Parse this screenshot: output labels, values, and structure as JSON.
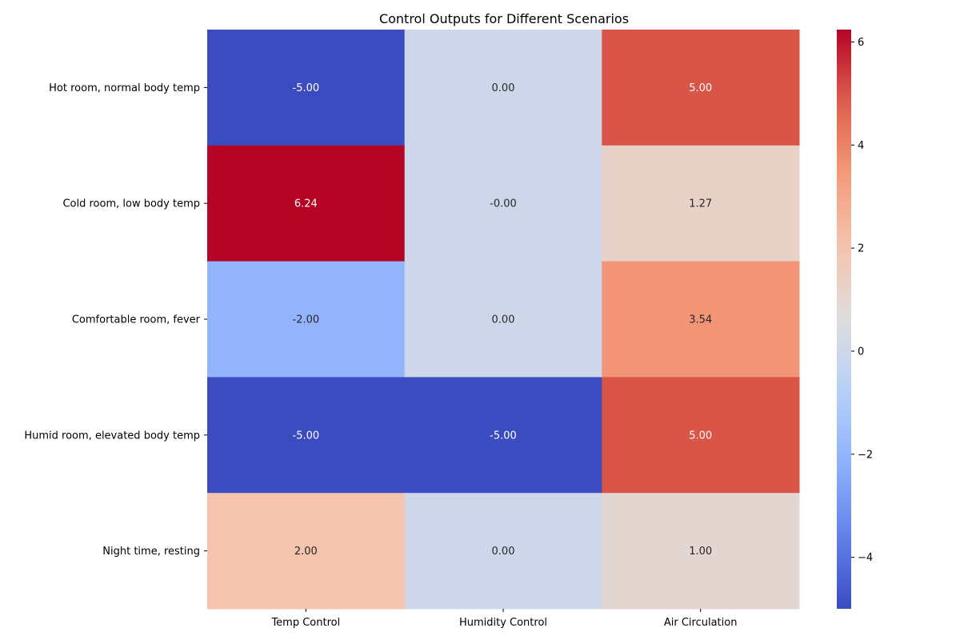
{
  "chart_data": {
    "type": "heatmap",
    "title": "Control Outputs for Different Scenarios",
    "rows": [
      "Hot room, normal body temp",
      "Cold room, low body temp",
      "Comfortable room, fever",
      "Humid room, elevated body temp",
      "Night time, resting"
    ],
    "columns": [
      "Temp Control",
      "Humidity Control",
      "Air Circulation"
    ],
    "values": [
      [
        -5.0,
        0.0,
        5.0
      ],
      [
        6.24,
        -0.0,
        1.27
      ],
      [
        -2.0,
        0.0,
        3.54
      ],
      [
        -5.0,
        -5.0,
        5.0
      ],
      [
        2.0,
        0.0,
        1.0
      ]
    ],
    "cell_labels": [
      [
        "-5.00",
        "0.00",
        "5.00"
      ],
      [
        "6.24",
        "-0.00",
        "1.27"
      ],
      [
        "-2.00",
        "0.00",
        "3.54"
      ],
      [
        "-5.00",
        "-5.00",
        "5.00"
      ],
      [
        "2.00",
        "0.00",
        "1.00"
      ]
    ],
    "colormap": "coolwarm",
    "vmin": -5.0,
    "vmax": 6.24,
    "colorbar": {
      "ticks": [
        -4,
        -2,
        0,
        2,
        4,
        6
      ],
      "tick_labels": [
        "−4",
        "−2",
        "0",
        "2",
        "4",
        "6"
      ],
      "placement": "right"
    },
    "grid": false
  }
}
